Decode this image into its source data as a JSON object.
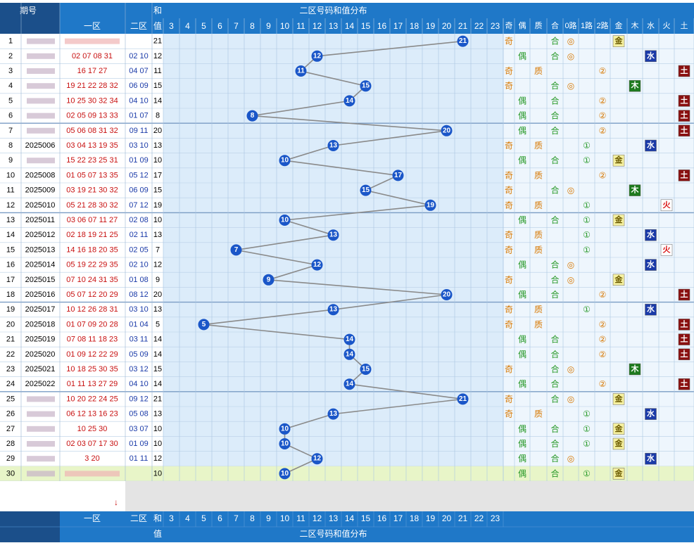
{
  "header": {
    "qihao_label": "期号",
    "zone1_label": "一区",
    "zone2_label": "二区",
    "sum_label_top": "和",
    "sum_label_bottom": "值",
    "dist_title": "二区号码和值分布",
    "sum_values": [
      3,
      4,
      5,
      6,
      7,
      8,
      9,
      10,
      11,
      12,
      13,
      14,
      15,
      16,
      17,
      18,
      19,
      20,
      21,
      22,
      23
    ],
    "attr_headers": [
      "奇",
      "偶",
      "质",
      "合",
      "0路",
      "1路",
      "2路",
      "金",
      "木",
      "水",
      "火",
      "土"
    ]
  },
  "colors": {
    "header_bg": "#1f78c8",
    "cell_bg": "#dcecfa",
    "odd": "#d87800",
    "even": "#2a9a2a",
    "prime": "#d87800",
    "composite": "#2a9a2a",
    "r0": "#d87800",
    "r1": "#2a9a2a",
    "r2": "#d87800",
    "ball": "#1a56c8",
    "line": "#8a8a8a",
    "last_row": "#e8f5c8"
  },
  "elements": {
    "gold": "金",
    "wood": "木",
    "water": "水",
    "fire": "火",
    "earth": "土"
  },
  "symbols": {
    "odd": "奇",
    "even": "偶",
    "prime": "质",
    "composite": "合",
    "r0": "◎",
    "r1": "①",
    "r2": "②"
  },
  "footer_arrow": "↓",
  "chart_data": {
    "type": "line",
    "title": "二区号码和值分布",
    "xlabel": "和值",
    "ylabel": "期号",
    "x_range": [
      3,
      23
    ],
    "rows": [
      {
        "n": 1,
        "issue": "",
        "zone1": "",
        "zone2": "",
        "sum": 21,
        "odd": true,
        "prime": false,
        "route": 0,
        "element": "金"
      },
      {
        "n": 2,
        "issue": "",
        "zone1": "02 07 08 31",
        "zone2": "02 10",
        "sum": 12,
        "odd": false,
        "prime": false,
        "route": 0,
        "element": "水"
      },
      {
        "n": 3,
        "issue": "",
        "zone1": "16 17 27",
        "zone2": "04 07",
        "sum": 11,
        "odd": true,
        "prime": true,
        "route": 2,
        "element": "土"
      },
      {
        "n": 4,
        "issue": "",
        "zone1": "19 21 22 28 32",
        "zone2": "06 09",
        "sum": 15,
        "odd": true,
        "prime": false,
        "route": 0,
        "element": "木"
      },
      {
        "n": 5,
        "issue": "",
        "zone1": "10 25 30 32 34",
        "zone2": "04 10",
        "sum": 14,
        "odd": false,
        "prime": false,
        "route": 2,
        "element": "土"
      },
      {
        "n": 6,
        "issue": "",
        "zone1": "02 05 09 13 33",
        "zone2": "01 07",
        "sum": 8,
        "odd": false,
        "prime": false,
        "route": 2,
        "element": "土"
      },
      {
        "n": 7,
        "issue": "",
        "zone1": "05 06 08 31 32",
        "zone2": "09 11",
        "sum": 20,
        "odd": false,
        "prime": false,
        "route": 2,
        "element": "土"
      },
      {
        "n": 8,
        "issue": "2025006",
        "zone1": "03 04 13 19 35",
        "zone2": "03 10",
        "sum": 13,
        "odd": true,
        "prime": true,
        "route": 1,
        "element": "水"
      },
      {
        "n": 9,
        "issue": "",
        "zone1": "15 22 23 25 31",
        "zone2": "01 09",
        "sum": 10,
        "odd": false,
        "prime": false,
        "route": 1,
        "element": "金"
      },
      {
        "n": 10,
        "issue": "2025008",
        "zone1": "01 05 07 13 35",
        "zone2": "05 12",
        "sum": 17,
        "odd": true,
        "prime": true,
        "route": 2,
        "element": "土"
      },
      {
        "n": 11,
        "issue": "2025009",
        "zone1": "03 19 21 30 32",
        "zone2": "06 09",
        "sum": 15,
        "odd": true,
        "prime": false,
        "route": 0,
        "element": "木"
      },
      {
        "n": 12,
        "issue": "2025010",
        "zone1": "05 21 28 30 32",
        "zone2": "07 12",
        "sum": 19,
        "odd": true,
        "prime": true,
        "route": 1,
        "element": "火"
      },
      {
        "n": 13,
        "issue": "2025011",
        "zone1": "03 06 07 11 27",
        "zone2": "02 08",
        "sum": 10,
        "odd": false,
        "prime": false,
        "route": 1,
        "element": "金"
      },
      {
        "n": 14,
        "issue": "2025012",
        "zone1": "02 18 19 21 25",
        "zone2": "02 11",
        "sum": 13,
        "odd": true,
        "prime": true,
        "route": 1,
        "element": "水"
      },
      {
        "n": 15,
        "issue": "2025013",
        "zone1": "14 16 18 20 35",
        "zone2": "02 05",
        "sum": 7,
        "odd": true,
        "prime": true,
        "route": 1,
        "element": "火"
      },
      {
        "n": 16,
        "issue": "2025014",
        "zone1": "05 19 22 29 35",
        "zone2": "02 10",
        "sum": 12,
        "odd": false,
        "prime": false,
        "route": 0,
        "element": "水"
      },
      {
        "n": 17,
        "issue": "2025015",
        "zone1": "07 10 24 31 35",
        "zone2": "01 08",
        "sum": 9,
        "odd": true,
        "prime": false,
        "route": 0,
        "element": "金"
      },
      {
        "n": 18,
        "issue": "2025016",
        "zone1": "05 07 12 20 29",
        "zone2": "08 12",
        "sum": 20,
        "odd": false,
        "prime": false,
        "route": 2,
        "element": "土"
      },
      {
        "n": 19,
        "issue": "2025017",
        "zone1": "10 12 26 28 31",
        "zone2": "03 10",
        "sum": 13,
        "odd": true,
        "prime": true,
        "route": 1,
        "element": "水"
      },
      {
        "n": 20,
        "issue": "2025018",
        "zone1": "01 07 09 20 28",
        "zone2": "01 04",
        "sum": 5,
        "odd": true,
        "prime": true,
        "route": 2,
        "element": "土"
      },
      {
        "n": 21,
        "issue": "2025019",
        "zone1": "07 08 11 18 23",
        "zone2": "03 11",
        "sum": 14,
        "odd": false,
        "prime": false,
        "route": 2,
        "element": "土"
      },
      {
        "n": 22,
        "issue": "2025020",
        "zone1": "01 09 12 22 29",
        "zone2": "05 09",
        "sum": 14,
        "odd": false,
        "prime": false,
        "route": 2,
        "element": "土"
      },
      {
        "n": 23,
        "issue": "2025021",
        "zone1": "10 18 25 30 35",
        "zone2": "03 12",
        "sum": 15,
        "odd": true,
        "prime": false,
        "route": 0,
        "element": "木"
      },
      {
        "n": 24,
        "issue": "2025022",
        "zone1": "01 11 13 27 29",
        "zone2": "04 10",
        "sum": 14,
        "odd": false,
        "prime": false,
        "route": 2,
        "element": "土"
      },
      {
        "n": 25,
        "issue": "",
        "zone1": "10 20 22 24 25",
        "zone2": "09 12",
        "sum": 21,
        "odd": true,
        "prime": false,
        "route": 0,
        "element": "金"
      },
      {
        "n": 26,
        "issue": "",
        "zone1": "06 12 13 16 23",
        "zone2": "05 08",
        "sum": 13,
        "odd": true,
        "prime": true,
        "route": 1,
        "element": "水"
      },
      {
        "n": 27,
        "issue": "",
        "zone1": "10 25 30",
        "zone2": "03 07",
        "sum": 10,
        "odd": false,
        "prime": false,
        "route": 1,
        "element": "金"
      },
      {
        "n": 28,
        "issue": "",
        "zone1": "02 03 07 17 30",
        "zone2": "01 09",
        "sum": 10,
        "odd": false,
        "prime": false,
        "route": 1,
        "element": "金"
      },
      {
        "n": 29,
        "issue": "",
        "zone1": "3 20",
        "zone2": "01 11",
        "sum": 12,
        "odd": false,
        "prime": false,
        "route": 0,
        "element": "水"
      },
      {
        "n": 30,
        "issue": "",
        "zone1": "",
        "zone2": "",
        "sum": 10,
        "odd": false,
        "prime": false,
        "route": 1,
        "element": "金"
      }
    ]
  }
}
